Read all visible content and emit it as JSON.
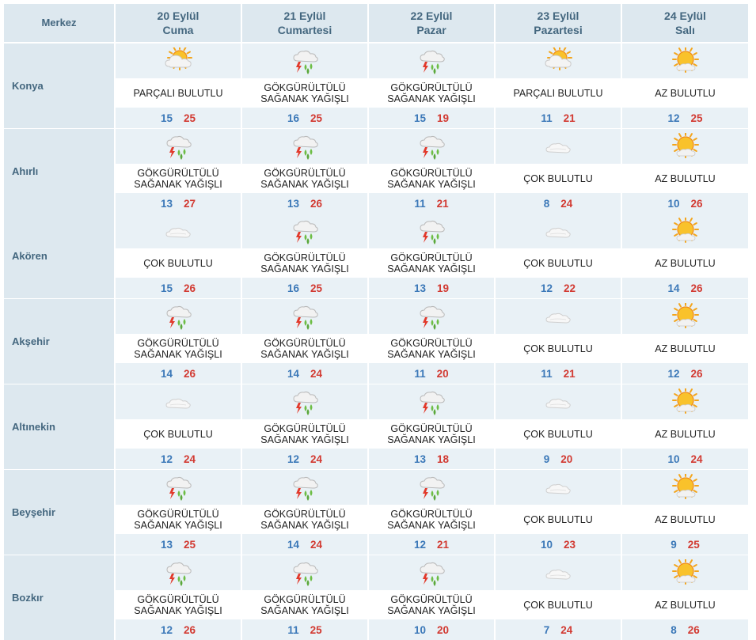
{
  "header": {
    "merkez_label": "Merkez",
    "days": [
      {
        "date": "20 Eylül",
        "weekday": "Cuma"
      },
      {
        "date": "21 Eylül",
        "weekday": "Cumartesi"
      },
      {
        "date": "22 Eylül",
        "weekday": "Pazar"
      },
      {
        "date": "23 Eylül",
        "weekday": "Pazartesi"
      },
      {
        "date": "24 Eylül",
        "weekday": "Salı"
      }
    ]
  },
  "colors": {
    "header_bg": "#dde8ef",
    "band_bg": "#e9f1f6",
    "header_text": "#44677f",
    "min_temp": "#3b78b8",
    "max_temp": "#d23a32"
  },
  "rows": [
    {
      "city": "Konya",
      "days": [
        {
          "icon": "partly-cloudy-icon",
          "condition": "PARÇALI BULUTLU",
          "min": 15,
          "max": 25
        },
        {
          "icon": "thunder-rain-icon",
          "condition": "GÖKGÜRÜLTÜLÜ\nSAĞANAK YAĞIŞLI",
          "min": 16,
          "max": 25
        },
        {
          "icon": "thunder-rain-icon",
          "condition": "GÖKGÜRÜLTÜLÜ\nSAĞANAK YAĞIŞLI",
          "min": 15,
          "max": 19
        },
        {
          "icon": "partly-cloudy-icon",
          "condition": "PARÇALI BULUTLU",
          "min": 11,
          "max": 21
        },
        {
          "icon": "mostly-sunny-icon",
          "condition": "AZ BULUTLU",
          "min": 12,
          "max": 25
        }
      ]
    },
    {
      "city": "Ahırlı",
      "days": [
        {
          "icon": "thunder-rain-icon",
          "condition": "GÖKGÜRÜLTÜLÜ\nSAĞANAK YAĞIŞLI",
          "min": 13,
          "max": 27
        },
        {
          "icon": "thunder-rain-icon",
          "condition": "GÖKGÜRÜLTÜLÜ\nSAĞANAK YAĞIŞLI",
          "min": 13,
          "max": 26
        },
        {
          "icon": "thunder-rain-icon",
          "condition": "GÖKGÜRÜLTÜLÜ\nSAĞANAK YAĞIŞLI",
          "min": 11,
          "max": 21
        },
        {
          "icon": "cloudy-icon",
          "condition": "ÇOK BULUTLU",
          "min": 8,
          "max": 24
        },
        {
          "icon": "mostly-sunny-icon",
          "condition": "AZ BULUTLU",
          "min": 10,
          "max": 26
        }
      ]
    },
    {
      "city": "Akören",
      "days": [
        {
          "icon": "cloudy-icon",
          "condition": "ÇOK BULUTLU",
          "min": 15,
          "max": 26
        },
        {
          "icon": "thunder-rain-icon",
          "condition": "GÖKGÜRÜLTÜLÜ\nSAĞANAK YAĞIŞLI",
          "min": 16,
          "max": 25
        },
        {
          "icon": "thunder-rain-icon",
          "condition": "GÖKGÜRÜLTÜLÜ\nSAĞANAK YAĞIŞLI",
          "min": 13,
          "max": 19
        },
        {
          "icon": "cloudy-icon",
          "condition": "ÇOK BULUTLU",
          "min": 12,
          "max": 22
        },
        {
          "icon": "mostly-sunny-icon",
          "condition": "AZ BULUTLU",
          "min": 14,
          "max": 26
        }
      ]
    },
    {
      "city": "Akşehir",
      "days": [
        {
          "icon": "thunder-rain-icon",
          "condition": "GÖKGÜRÜLTÜLÜ\nSAĞANAK YAĞIŞLI",
          "min": 14,
          "max": 26
        },
        {
          "icon": "thunder-rain-icon",
          "condition": "GÖKGÜRÜLTÜLÜ\nSAĞANAK YAĞIŞLI",
          "min": 14,
          "max": 24
        },
        {
          "icon": "thunder-rain-icon",
          "condition": "GÖKGÜRÜLTÜLÜ\nSAĞANAK YAĞIŞLI",
          "min": 11,
          "max": 20
        },
        {
          "icon": "cloudy-icon",
          "condition": "ÇOK BULUTLU",
          "min": 11,
          "max": 21
        },
        {
          "icon": "mostly-sunny-icon",
          "condition": "AZ BULUTLU",
          "min": 12,
          "max": 26
        }
      ]
    },
    {
      "city": "Altınekin",
      "days": [
        {
          "icon": "cloudy-icon",
          "condition": "ÇOK BULUTLU",
          "min": 12,
          "max": 24
        },
        {
          "icon": "thunder-rain-icon",
          "condition": "GÖKGÜRÜLTÜLÜ\nSAĞANAK YAĞIŞLI",
          "min": 12,
          "max": 24
        },
        {
          "icon": "thunder-rain-icon",
          "condition": "GÖKGÜRÜLTÜLÜ\nSAĞANAK YAĞIŞLI",
          "min": 13,
          "max": 18
        },
        {
          "icon": "cloudy-icon",
          "condition": "ÇOK BULUTLU",
          "min": 9,
          "max": 20
        },
        {
          "icon": "mostly-sunny-icon",
          "condition": "AZ BULUTLU",
          "min": 10,
          "max": 24
        }
      ]
    },
    {
      "city": "Beyşehir",
      "days": [
        {
          "icon": "thunder-rain-icon",
          "condition": "GÖKGÜRÜLTÜLÜ\nSAĞANAK YAĞIŞLI",
          "min": 13,
          "max": 25
        },
        {
          "icon": "thunder-rain-icon",
          "condition": "GÖKGÜRÜLTÜLÜ\nSAĞANAK YAĞIŞLI",
          "min": 14,
          "max": 24
        },
        {
          "icon": "thunder-rain-icon",
          "condition": "GÖKGÜRÜLTÜLÜ\nSAĞANAK YAĞIŞLI",
          "min": 12,
          "max": 21
        },
        {
          "icon": "cloudy-icon",
          "condition": "ÇOK BULUTLU",
          "min": 10,
          "max": 23
        },
        {
          "icon": "mostly-sunny-icon",
          "condition": "AZ BULUTLU",
          "min": 9,
          "max": 25
        }
      ]
    },
    {
      "city": "Bozkır",
      "days": [
        {
          "icon": "thunder-rain-icon",
          "condition": "GÖKGÜRÜLTÜLÜ\nSAĞANAK YAĞIŞLI",
          "min": 12,
          "max": 26
        },
        {
          "icon": "thunder-rain-icon",
          "condition": "GÖKGÜRÜLTÜLÜ\nSAĞANAK YAĞIŞLI",
          "min": 11,
          "max": 25
        },
        {
          "icon": "thunder-rain-icon",
          "condition": "GÖKGÜRÜLTÜLÜ\nSAĞANAK YAĞIŞLI",
          "min": 10,
          "max": 20
        },
        {
          "icon": "cloudy-icon",
          "condition": "ÇOK BULUTLU",
          "min": 7,
          "max": 24
        },
        {
          "icon": "mostly-sunny-icon",
          "condition": "AZ BULUTLU",
          "min": 8,
          "max": 26
        }
      ]
    }
  ]
}
